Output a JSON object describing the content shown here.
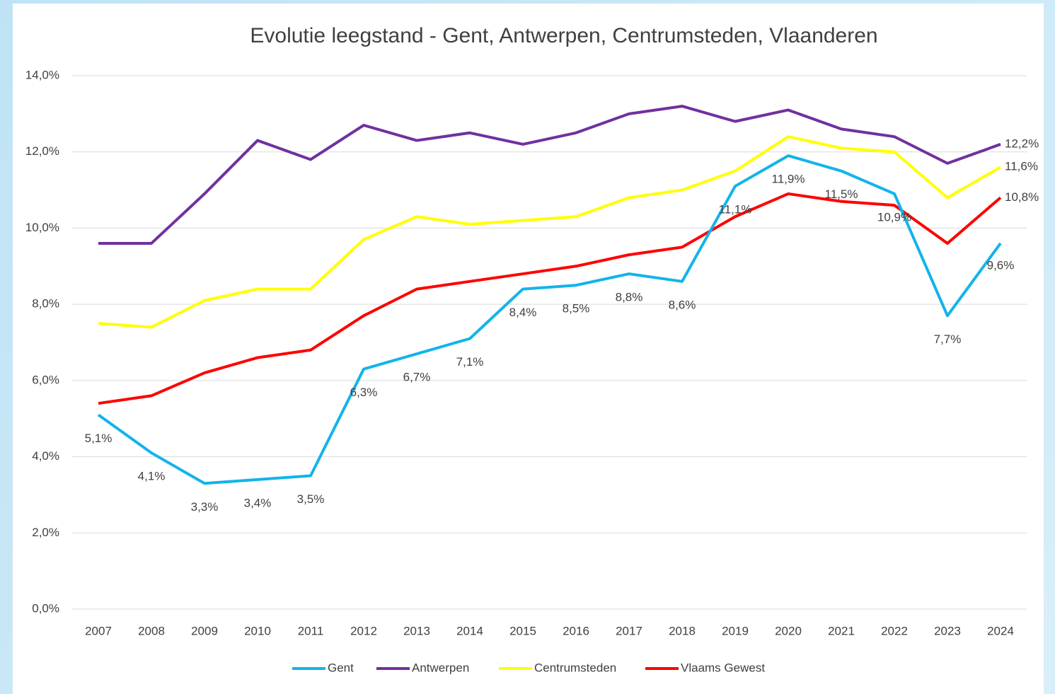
{
  "chart_data": {
    "type": "line",
    "title": "Evolutie leegstand - Gent, Antwerpen, Centrumsteden, Vlaanderen",
    "categories": [
      "2007",
      "2008",
      "2009",
      "2010",
      "2011",
      "2012",
      "2013",
      "2014",
      "2015",
      "2016",
      "2017",
      "2018",
      "2019",
      "2020",
      "2021",
      "2022",
      "2023",
      "2024"
    ],
    "ylim": [
      0,
      14
    ],
    "yticks": [
      {
        "value": 0,
        "label": "0,0%"
      },
      {
        "value": 2,
        "label": "2,0%"
      },
      {
        "value": 4,
        "label": "4,0%"
      },
      {
        "value": 6,
        "label": "6,0%"
      },
      {
        "value": 8,
        "label": "8,0%"
      },
      {
        "value": 10,
        "label": "10,0%"
      },
      {
        "value": 12,
        "label": "12,0%"
      },
      {
        "value": 14,
        "label": "14,0%"
      }
    ],
    "grid": true,
    "legend": "bottom",
    "series": [
      {
        "name": "Gent",
        "color": "#12b4ea",
        "values": [
          5.1,
          4.1,
          3.3,
          3.4,
          3.5,
          6.3,
          6.7,
          7.1,
          8.4,
          8.5,
          8.8,
          8.6,
          11.1,
          11.9,
          11.5,
          10.9,
          7.7,
          9.6
        ],
        "value_labels": [
          "5,1%",
          "4,1%",
          "3,3%",
          "3,4%",
          "3,5%",
          "6,3%",
          "6,7%",
          "7,1%",
          "8,4%",
          "8,5%",
          "8,8%",
          "8,6%",
          "11,1%",
          "11,9%",
          "11,5%",
          "10,9%",
          "7,7%",
          "9,6%"
        ]
      },
      {
        "name": "Antwerpen",
        "color": "#7030a0",
        "values": [
          9.6,
          9.6,
          10.9,
          12.3,
          11.8,
          12.7,
          12.3,
          12.5,
          12.2,
          12.5,
          13.0,
          13.2,
          12.8,
          13.1,
          12.6,
          12.4,
          11.7,
          12.2
        ],
        "value_labels": [
          null,
          null,
          null,
          null,
          null,
          null,
          null,
          null,
          null,
          null,
          null,
          null,
          null,
          null,
          null,
          null,
          null,
          "12,2%"
        ]
      },
      {
        "name": "Centrumsteden",
        "color": "#ffff00",
        "values": [
          7.5,
          7.4,
          8.1,
          8.4,
          8.4,
          9.7,
          10.3,
          10.1,
          10.2,
          10.3,
          10.8,
          11.0,
          11.5,
          12.4,
          12.1,
          12.0,
          10.8,
          11.6
        ],
        "value_labels": [
          null,
          null,
          null,
          null,
          null,
          null,
          null,
          null,
          null,
          null,
          null,
          null,
          null,
          null,
          null,
          null,
          null,
          "11,6%"
        ]
      },
      {
        "name": "Vlaams Gewest",
        "color": "#ff0000",
        "values": [
          5.4,
          5.6,
          6.2,
          6.6,
          6.8,
          7.7,
          8.4,
          8.6,
          8.8,
          9.0,
          9.3,
          9.5,
          10.3,
          10.9,
          10.7,
          10.6,
          9.6,
          10.8
        ],
        "value_labels": [
          null,
          null,
          null,
          null,
          null,
          null,
          null,
          null,
          null,
          null,
          null,
          null,
          null,
          null,
          null,
          null,
          null,
          "10,8%"
        ]
      }
    ]
  }
}
